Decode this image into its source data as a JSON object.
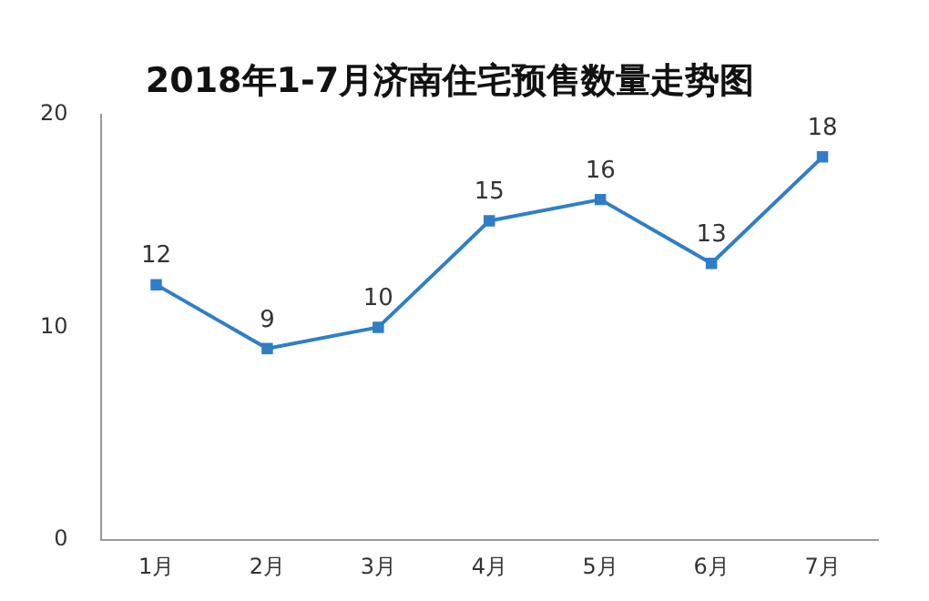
{
  "chart_data": {
    "type": "line",
    "title": "2018年1-7月济南住宅预售数量走势图",
    "categories": [
      "1月",
      "2月",
      "3月",
      "4月",
      "5月",
      "6月",
      "7月"
    ],
    "values": [
      12,
      9,
      10,
      15,
      16,
      13,
      18
    ],
    "color": "#2f7ec7",
    "ylim": [
      0,
      20
    ],
    "yticks": [
      0,
      10,
      20
    ],
    "grid": false,
    "legend": false,
    "marker": "square",
    "line_style": "solid",
    "data_labels": true
  }
}
